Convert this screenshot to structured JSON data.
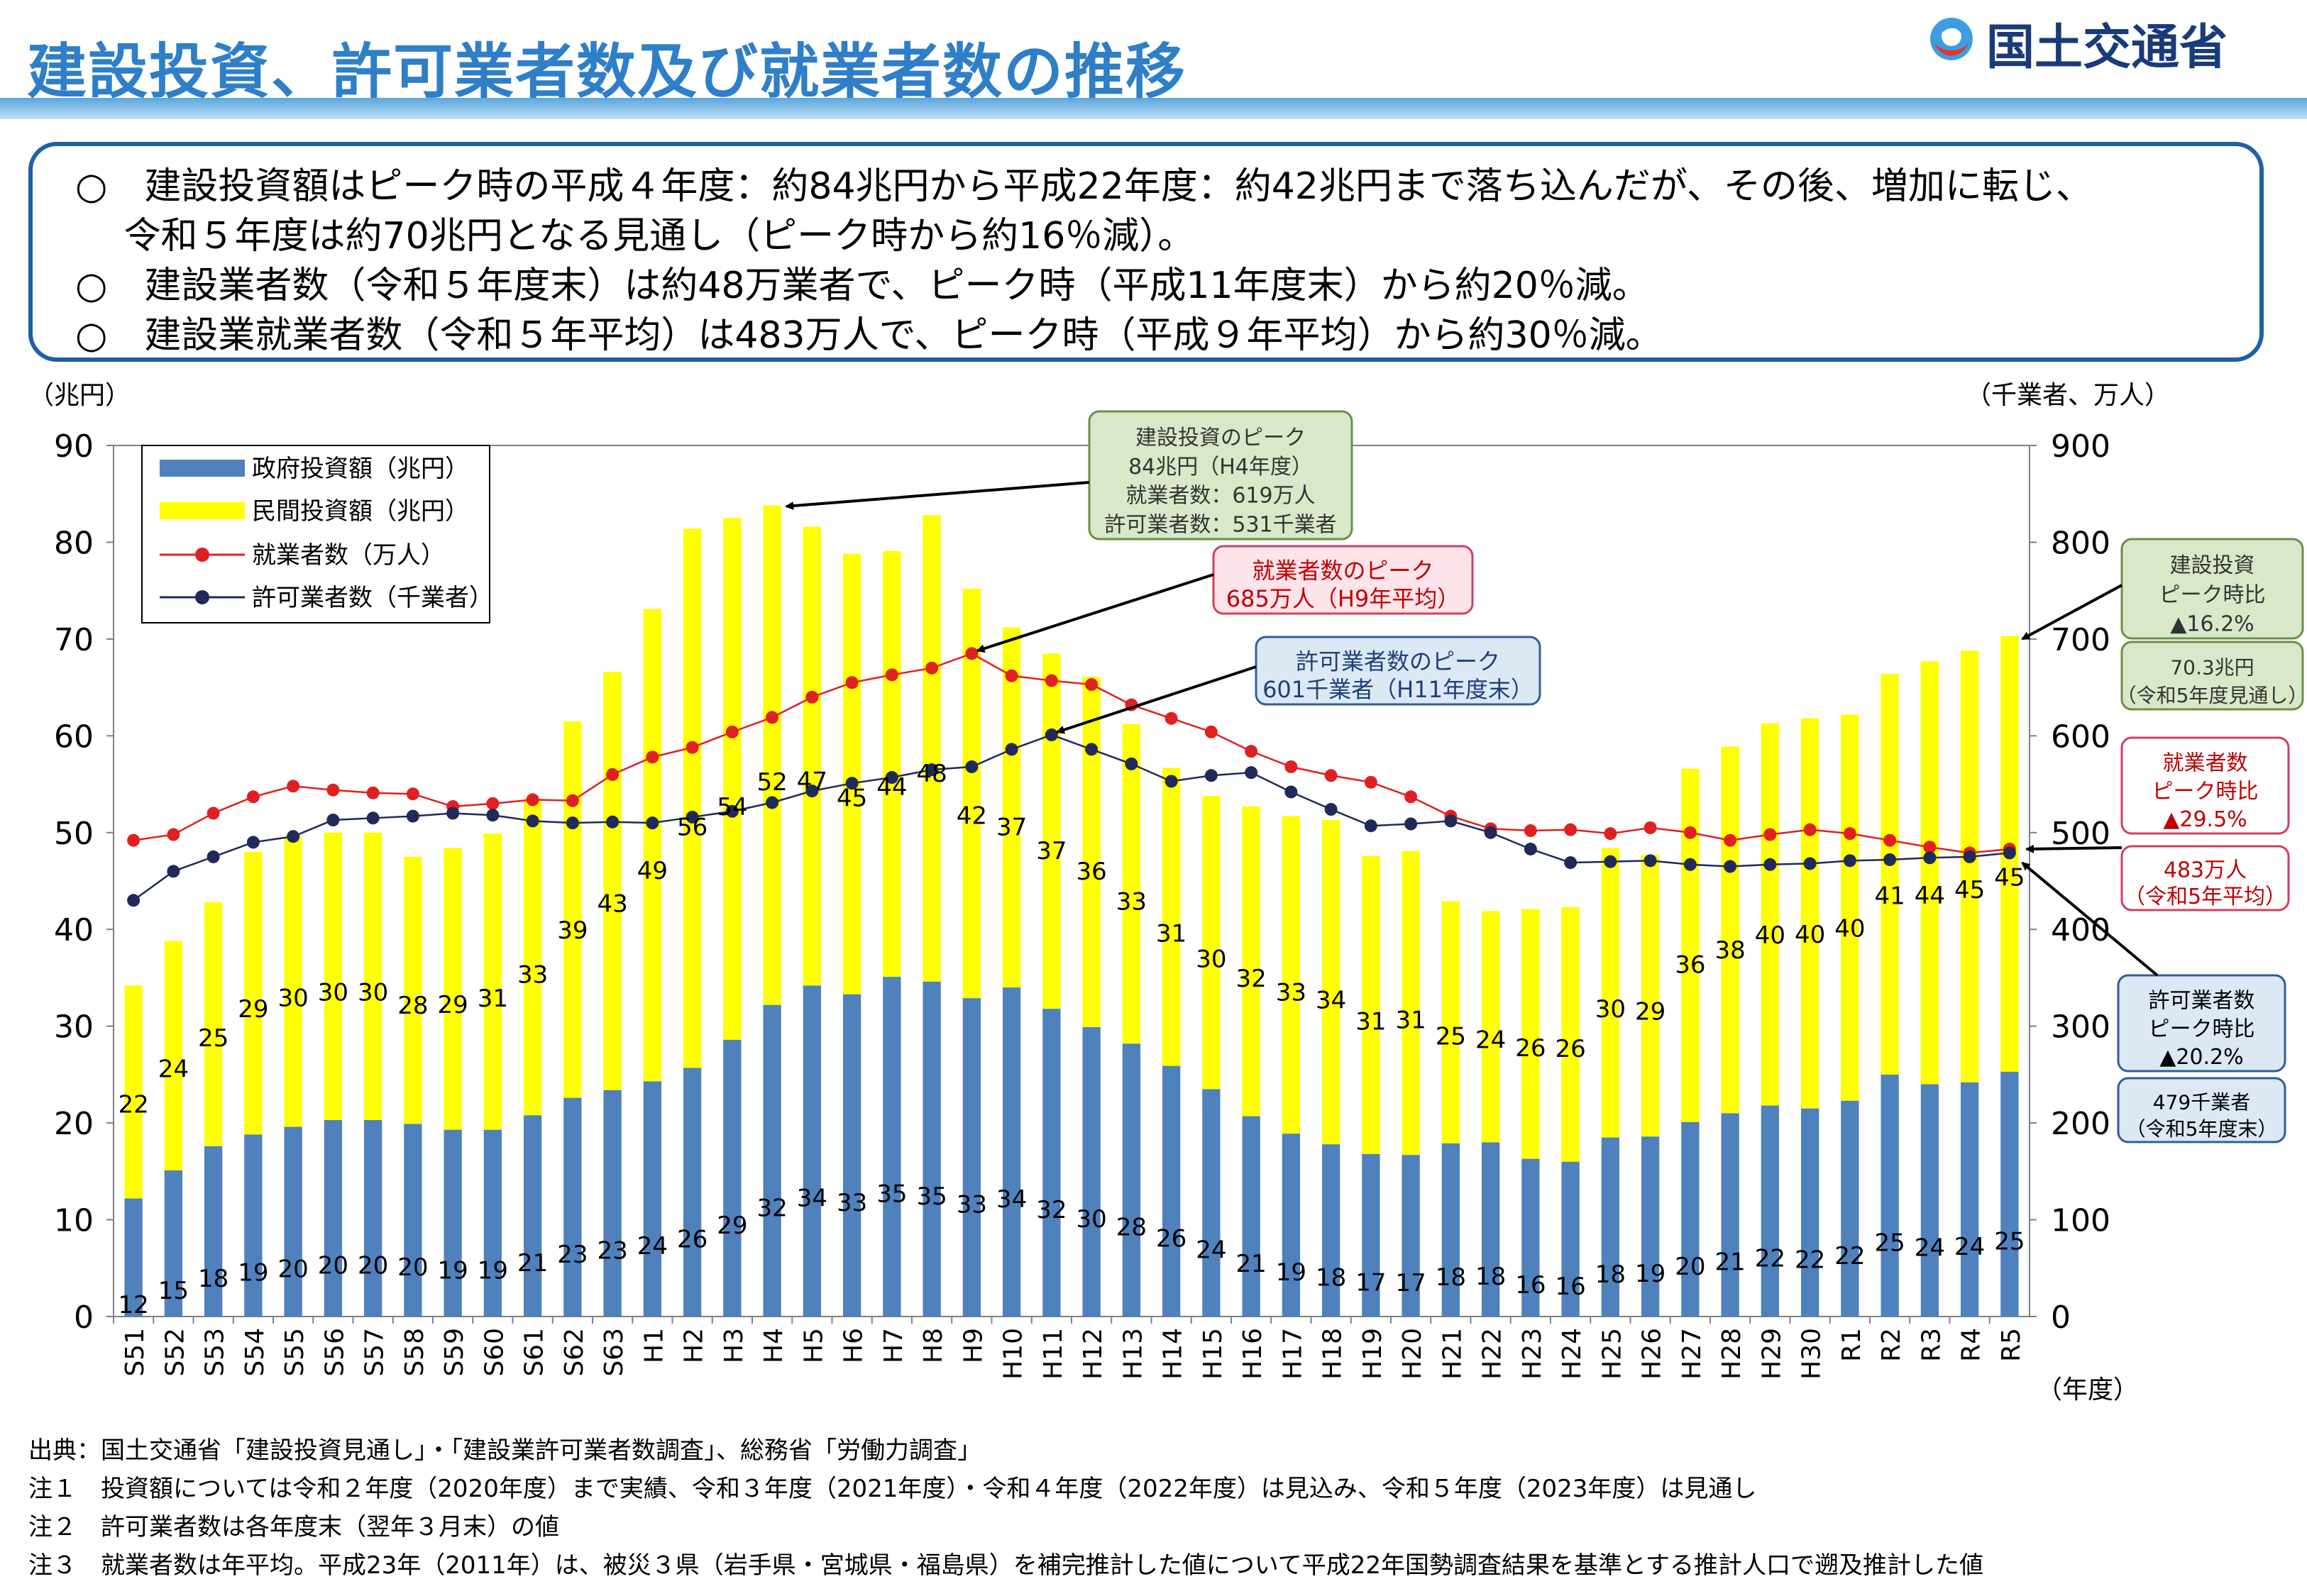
{
  "header": {
    "title": "建設投資、許可業者数及び就業者数の推移",
    "logo_text": "国土交通省"
  },
  "summary": {
    "line1": "○　建設投資額はピーク時の平成４年度：約84兆円から平成22年度：約42兆円まで落ち込んだが、その後、増加に転じ、",
    "line2": "　 令和５年度は約70兆円となる見通し（ピーク時から約16％減）。",
    "line3": "○　建設業者数（令和５年度末）は約48万業者で、ピーク時（平成11年度末）から約20％減。",
    "line4": "○　建設業就業者数（令和５年平均）は483万人で、ピーク時（平成９年平均）から約30％減。"
  },
  "axis_units": {
    "left": "（兆円）",
    "right": "（千業者、万人）",
    "x": "（年度）"
  },
  "colors": {
    "government": "#4f81bd",
    "private": "#ffff00",
    "workers": "#e02020",
    "licensed": "#1f2a5a",
    "box_green": "#d9e8c8",
    "box_pink": "#fde4ea",
    "box_blue": "#dce8f4"
  },
  "chart_data": {
    "type": "bar",
    "categories": [
      "S51",
      "S52",
      "S53",
      "S54",
      "S55",
      "S56",
      "S57",
      "S58",
      "S59",
      "S60",
      "S61",
      "S62",
      "S63",
      "H1",
      "H2",
      "H3",
      "H4",
      "H5",
      "H6",
      "H7",
      "H8",
      "H9",
      "H10",
      "H11",
      "H12",
      "H13",
      "H14",
      "H15",
      "H16",
      "H17",
      "H18",
      "H19",
      "H20",
      "H21",
      "H22",
      "H23",
      "H24",
      "H25",
      "H26",
      "H27",
      "H28",
      "H29",
      "H30",
      "R1",
      "R2",
      "R3",
      "R4",
      "R5"
    ],
    "left_ylim": [
      0,
      90
    ],
    "right_ylim": [
      0,
      900
    ],
    "left_ticks": [
      "0",
      "10",
      "20",
      "30",
      "40",
      "50",
      "60",
      "70",
      "80",
      "90"
    ],
    "right_ticks": [
      "0",
      "100",
      "200",
      "300",
      "400",
      "500",
      "600",
      "700",
      "800",
      "900"
    ],
    "stacked": true,
    "series": [
      {
        "name": "政府投資額（兆円）",
        "axis": "left",
        "kind": "bar",
        "values": [
          12.2,
          15.1,
          17.6,
          18.8,
          19.6,
          20.3,
          20.3,
          19.9,
          19.3,
          19.3,
          20.8,
          22.6,
          23.4,
          24.3,
          25.7,
          28.6,
          32.2,
          34.2,
          33.3,
          35.1,
          34.6,
          32.9,
          34.0,
          31.8,
          29.9,
          28.2,
          25.9,
          23.5,
          20.7,
          18.9,
          17.8,
          16.8,
          16.7,
          17.9,
          18.0,
          16.3,
          16.0,
          18.5,
          18.6,
          20.1,
          21.0,
          21.8,
          21.5,
          22.3,
          25.0,
          24.0,
          24.2,
          25.3
        ],
        "labels": [
          "12",
          "15",
          "18",
          "19",
          "20",
          "20",
          "20",
          "20",
          "19",
          "19",
          "21",
          "23",
          "23",
          "24",
          "26",
          "29",
          "32",
          "34",
          "33",
          "35",
          "35",
          "33",
          "34",
          "32",
          "30",
          "28",
          "26",
          "24",
          "21",
          "19",
          "18",
          "17",
          "17",
          "18",
          "18",
          "16",
          "16",
          "18",
          "19",
          "20",
          "21",
          "22",
          "22",
          "22",
          "25",
          "24",
          "24",
          "25"
        ]
      },
      {
        "name": "民間投資額（兆円）",
        "axis": "left",
        "kind": "bar",
        "values": [
          22.0,
          23.7,
          25.2,
          29.2,
          30.0,
          29.7,
          29.7,
          27.6,
          29.1,
          30.6,
          32.7,
          38.9,
          43.2,
          48.8,
          55.7,
          53.9,
          51.6,
          47.4,
          45.5,
          44.0,
          48.2,
          42.3,
          37.2,
          36.7,
          36.2,
          33.0,
          30.8,
          30.3,
          32.0,
          32.8,
          33.5,
          30.8,
          31.4,
          25.0,
          23.9,
          25.8,
          26.3,
          29.9,
          29.1,
          36.5,
          37.9,
          39.5,
          40.3,
          39.9,
          41.4,
          43.7,
          44.6,
          45.0
        ],
        "labels": [
          "22",
          "24",
          "25",
          "29",
          "30",
          "30",
          "30",
          "28",
          "29",
          "31",
          "33",
          "39",
          "43",
          "49",
          "56",
          "54",
          "52",
          "47",
          "45",
          "44",
          "48",
          "42",
          "37",
          "37",
          "36",
          "33",
          "31",
          "30",
          "32",
          "33",
          "34",
          "31",
          "31",
          "25",
          "24",
          "26",
          "26",
          "30",
          "29",
          "36",
          "38",
          "40",
          "40",
          "40",
          "41",
          "44",
          "45",
          "45"
        ]
      },
      {
        "name": "就業者数（万人）",
        "axis": "right",
        "kind": "line",
        "values": [
          492,
          498,
          520,
          537,
          548,
          544,
          541,
          540,
          527,
          530,
          534,
          533,
          560,
          578,
          588,
          604,
          619,
          640,
          655,
          663,
          670,
          685,
          662,
          657,
          653,
          632,
          618,
          604,
          584,
          568,
          559,
          552,
          537,
          517,
          504,
          502,
          503,
          499,
          505,
          500,
          492,
          498,
          503,
          499,
          492,
          485,
          479,
          483
        ]
      },
      {
        "name": "許可業者数（千業者）",
        "axis": "right",
        "kind": "line",
        "values": [
          430,
          460,
          475,
          490,
          496,
          513,
          515,
          517,
          520,
          518,
          512,
          510,
          511,
          510,
          516,
          522,
          531,
          543,
          551,
          557,
          565,
          568,
          586,
          601,
          586,
          571,
          553,
          559,
          562,
          542,
          524,
          507,
          509,
          512,
          500,
          483,
          469,
          470,
          471,
          467,
          465,
          467,
          468,
          471,
          472,
          474,
          475,
          479
        ]
      }
    ],
    "callouts": [
      {
        "key": "invest_peak",
        "lines": [
          "建設投資のピーク",
          "84兆円（H4年度）",
          "就業者数：619万人",
          "許可業者数：531千業者"
        ]
      },
      {
        "key": "workers_peak",
        "lines": [
          "就業者数のピーク",
          "685万人（H9年平均）"
        ]
      },
      {
        "key": "licensed_peak",
        "lines": [
          "許可業者数のピーク",
          "601千業者（H11年度末）"
        ]
      }
    ],
    "side_boxes": [
      {
        "key": "invest_ratio",
        "lines": [
          "建設投資",
          "ピーク時比",
          "▲16.2%"
        ]
      },
      {
        "key": "invest_value",
        "lines": [
          "70.3兆円",
          "（令和5年度見通し）"
        ]
      },
      {
        "key": "workers_ratio",
        "lines": [
          "就業者数",
          "ピーク時比",
          "▲29.5%"
        ]
      },
      {
        "key": "workers_value",
        "lines": [
          "483万人",
          "（令和5年平均）"
        ]
      },
      {
        "key": "licensed_ratio",
        "lines": [
          "許可業者数",
          "ピーク時比",
          "▲20.2%"
        ]
      },
      {
        "key": "licensed_value",
        "lines": [
          "479千業者",
          "（令和5年度末）"
        ]
      }
    ]
  },
  "notes": {
    "source": "出典：国土交通省「建設投資見通し」・「建設業許可業者数調査」、総務省「労働力調査」",
    "note1": "注１　投資額については令和２年度（2020年度）まで実績、令和３年度（2021年度）・令和４年度（2022年度）は見込み、令和５年度（2023年度）は見通し",
    "note2": "注２　許可業者数は各年度末（翌年３月末）の値",
    "note3": "注３　就業者数は年平均。平成23年（2011年）は、被災３県（岩手県・宮城県・福島県）を補完推計した値について平成22年国勢調査結果を基準とする推計人口で遡及推計した値"
  }
}
